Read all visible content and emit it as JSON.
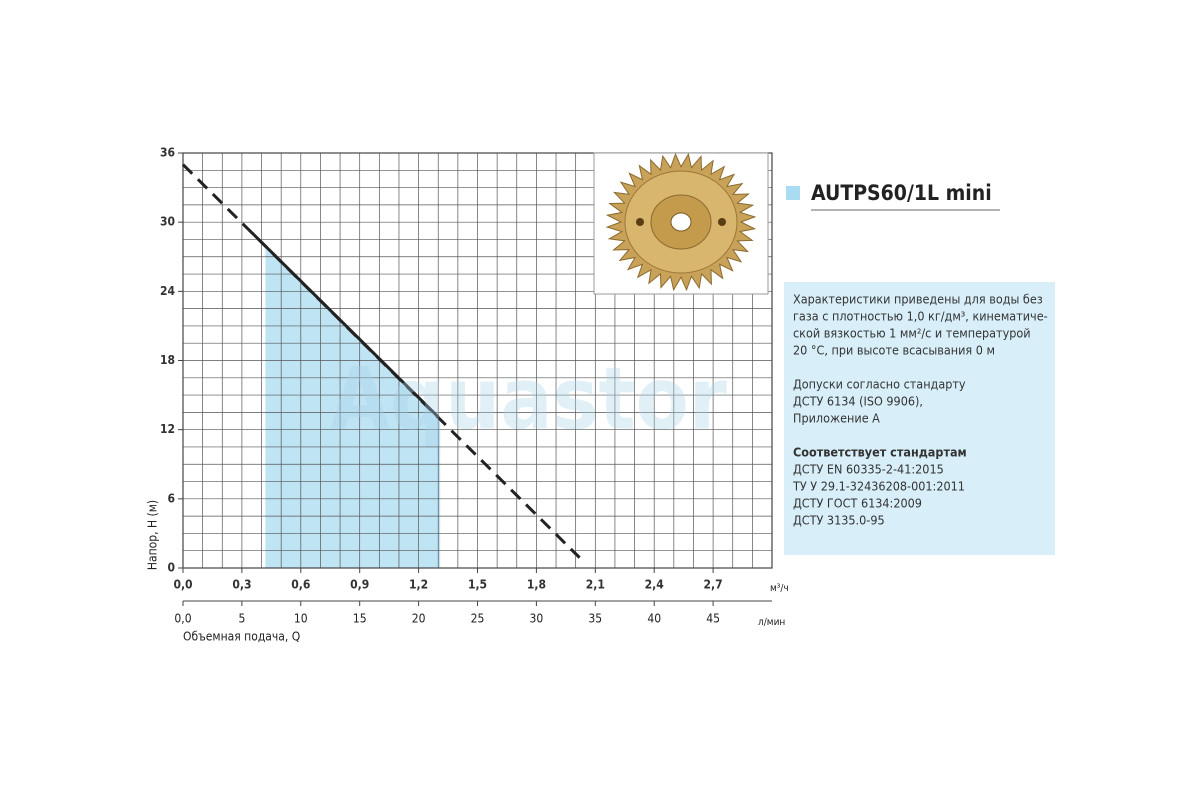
{
  "chart_data": {
    "type": "line",
    "title": "AUTPS60/1L mini",
    "watermark": "Aquastor",
    "y_label": "Напор, Н (м)",
    "x_label": "Объемная подача, Q",
    "x_unit": "м³/ч",
    "x2_unit": "л/мин",
    "xlim": [
      0,
      3.0
    ],
    "xticks": [
      {
        "value": 0,
        "label": "0,0"
      },
      {
        "value": 0.3,
        "label": "0,3"
      },
      {
        "value": 0.6,
        "label": "0,6"
      },
      {
        "value": 0.9,
        "label": "0,9"
      },
      {
        "value": 1.2,
        "label": "1,2"
      },
      {
        "value": 1.5,
        "label": "1,5"
      },
      {
        "value": 1.8,
        "label": "1,8"
      },
      {
        "value": 2.1,
        "label": "2,1"
      },
      {
        "value": 2.4,
        "label": "2,4"
      },
      {
        "value": 2.7,
        "label": "2,7"
      }
    ],
    "x2lim": [
      0,
      50
    ],
    "x2ticks": [
      {
        "value": 0,
        "label": "0,0"
      },
      5,
      10,
      15,
      20,
      25,
      30,
      35,
      40,
      45
    ],
    "ylim": [
      0,
      36
    ],
    "yticks": [
      0,
      6,
      12,
      18,
      24,
      30,
      36
    ],
    "grid": true,
    "x_grid_step": 0.1,
    "y_grid_step": 1.5,
    "series": [
      {
        "color": "#222222",
        "dash": true,
        "x": [
          0,
          2.02
        ],
        "values": [
          35,
          0.9
        ]
      },
      {
        "color": "#222222",
        "dash": false,
        "x": [
          0.35,
          1.3
        ],
        "values": [
          29.1,
          13.1
        ]
      }
    ],
    "working_range": {
      "color": "#bfe4f4",
      "x": [
        0.42,
        1.31
      ]
    },
    "notes": [
      "Характеристики приведены для воды без",
      "газа с плотностью 1,0 кг/дм³, кинематиче-",
      "ской вязкостью 1 мм²/с и температурой",
      "20 °С, при высоте всасывания 0 м",
      "Допуски согласно стандарту",
      "ДСТУ 6134 (ISO 9906),",
      "Приложение А",
      "Соответствует стандартам",
      "ДСТУ EN 60335-2-41:2015",
      "ТУ У 29.1-32436208-001:2011",
      "ДСТУ ГОСТ 6134:2009",
      "ДСТУ 3135.0-95"
    ]
  }
}
